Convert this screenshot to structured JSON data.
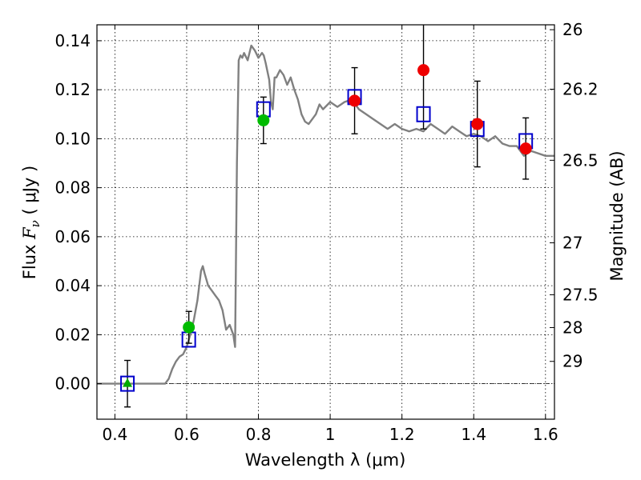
{
  "chart_data": {
    "type": "scatter",
    "xlabel": "Wavelength  λ (μm)",
    "ylabel": "Flux  Fν  ( μJy )",
    "ylabel_parts": {
      "pre": "Flux  ",
      "sym": "F",
      "sub": "ν",
      "unit": "  ( μJy )"
    },
    "ylabel_right": "Magnitude (AB)",
    "xlim": [
      0.35,
      1.625
    ],
    "ylim": [
      -0.0145,
      0.1465
    ],
    "grid": true,
    "x_ticks": [
      {
        "value": 0.4,
        "label": "0.4"
      },
      {
        "value": 0.6,
        "label": "0.6"
      },
      {
        "value": 0.8,
        "label": "0.8"
      },
      {
        "value": 1.0,
        "label": "1"
      },
      {
        "value": 1.2,
        "label": "1.2"
      },
      {
        "value": 1.4,
        "label": "1.4"
      },
      {
        "value": 1.6,
        "label": "1.6"
      }
    ],
    "y_ticks": [
      {
        "value": 0.0,
        "label": "0.00"
      },
      {
        "value": 0.02,
        "label": "0.02"
      },
      {
        "value": 0.04,
        "label": "0.04"
      },
      {
        "value": 0.06,
        "label": "0.06"
      },
      {
        "value": 0.08,
        "label": "0.08"
      },
      {
        "value": 0.1,
        "label": "0.10"
      },
      {
        "value": 0.12,
        "label": "0.12"
      },
      {
        "value": 0.14,
        "label": "0.14"
      }
    ],
    "right_ticks": [
      {
        "flux": 0.1445,
        "label": "26"
      },
      {
        "flux": 0.1202,
        "label": "26.2"
      },
      {
        "flux": 0.0912,
        "label": "26.5"
      },
      {
        "flux": 0.0575,
        "label": "27"
      },
      {
        "flux": 0.0363,
        "label": "27.5"
      },
      {
        "flux": 0.0229,
        "label": "28"
      },
      {
        "flux": 0.0091,
        "label": "29"
      }
    ],
    "model_sed": {
      "color": "#808080",
      "x": [
        0.35,
        0.54,
        0.55,
        0.56,
        0.57,
        0.58,
        0.59,
        0.6,
        0.61,
        0.62,
        0.63,
        0.64,
        0.645,
        0.65,
        0.66,
        0.67,
        0.68,
        0.69,
        0.7,
        0.71,
        0.72,
        0.725,
        0.73,
        0.735,
        0.74,
        0.745,
        0.75,
        0.755,
        0.76,
        0.77,
        0.78,
        0.79,
        0.8,
        0.81,
        0.815,
        0.82,
        0.83,
        0.835,
        0.84,
        0.845,
        0.85,
        0.86,
        0.87,
        0.88,
        0.89,
        0.9,
        0.91,
        0.92,
        0.93,
        0.94,
        0.95,
        0.96,
        0.97,
        0.98,
        1.0,
        1.02,
        1.04,
        1.06,
        1.08,
        1.1,
        1.12,
        1.14,
        1.16,
        1.18,
        1.2,
        1.22,
        1.24,
        1.26,
        1.28,
        1.3,
        1.32,
        1.34,
        1.36,
        1.38,
        1.4,
        1.42,
        1.44,
        1.46,
        1.48,
        1.5,
        1.52,
        1.54,
        1.56,
        1.58,
        1.6,
        1.625
      ],
      "y": [
        0.0,
        0.0,
        0.002,
        0.006,
        0.009,
        0.011,
        0.012,
        0.015,
        0.02,
        0.026,
        0.034,
        0.046,
        0.048,
        0.045,
        0.04,
        0.038,
        0.036,
        0.034,
        0.03,
        0.022,
        0.024,
        0.022,
        0.02,
        0.015,
        0.09,
        0.132,
        0.134,
        0.133,
        0.135,
        0.132,
        0.138,
        0.136,
        0.133,
        0.135,
        0.134,
        0.131,
        0.124,
        0.115,
        0.112,
        0.125,
        0.125,
        0.128,
        0.126,
        0.122,
        0.125,
        0.12,
        0.116,
        0.11,
        0.107,
        0.106,
        0.108,
        0.11,
        0.114,
        0.112,
        0.115,
        0.113,
        0.115,
        0.116,
        0.112,
        0.11,
        0.108,
        0.106,
        0.104,
        0.106,
        0.104,
        0.103,
        0.104,
        0.103,
        0.106,
        0.104,
        0.102,
        0.105,
        0.103,
        0.101,
        0.102,
        0.101,
        0.099,
        0.101,
        0.098,
        0.097,
        0.097,
        0.093,
        0.095,
        0.094,
        0.093,
        0.093
      ]
    },
    "observed_points": [
      {
        "x": 0.435,
        "y": 0.0,
        "err": 0.0095,
        "marker": "triangle",
        "color": "#00aa00"
      },
      {
        "x": 0.606,
        "y": 0.023,
        "err": 0.0065,
        "marker": "circle",
        "color": "#00bb00"
      },
      {
        "x": 0.814,
        "y": 0.1075,
        "err": 0.0095,
        "marker": "circle",
        "color": "#00bb00"
      },
      {
        "x": 1.068,
        "y": 0.1155,
        "err": 0.0135,
        "marker": "circle",
        "color": "#ee0000"
      },
      {
        "x": 1.26,
        "y": 0.128,
        "err": 0.024,
        "marker": "circle",
        "color": "#ee0000"
      },
      {
        "x": 1.41,
        "y": 0.106,
        "err": 0.0175,
        "marker": "circle",
        "color": "#ee0000"
      },
      {
        "x": 1.545,
        "y": 0.096,
        "err": 0.0125,
        "marker": "circle",
        "color": "#ee0000"
      }
    ],
    "model_bandpass": {
      "color": "#0000cc",
      "points": [
        {
          "x": 0.435,
          "y": 0.0
        },
        {
          "x": 0.606,
          "y": 0.018
        },
        {
          "x": 0.814,
          "y": 0.112
        },
        {
          "x": 1.068,
          "y": 0.117
        },
        {
          "x": 1.26,
          "y": 0.11
        },
        {
          "x": 1.41,
          "y": 0.104
        },
        {
          "x": 1.545,
          "y": 0.099
        }
      ]
    }
  }
}
